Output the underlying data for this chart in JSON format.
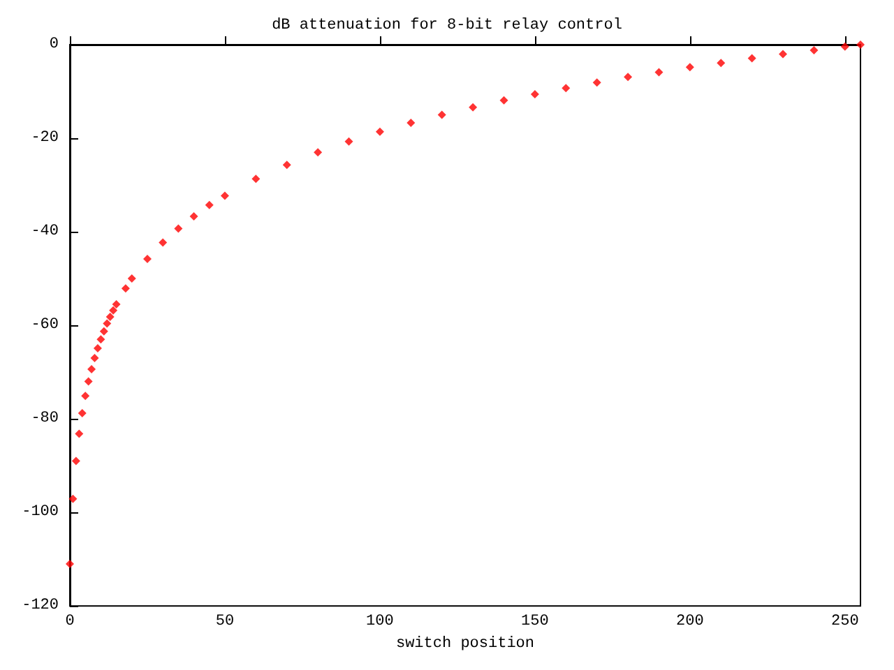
{
  "chart_data": {
    "type": "scatter",
    "title": "dB attenuation for 8-bit relay control",
    "xlabel": "switch position",
    "x": [
      0,
      1,
      2,
      3,
      4,
      5,
      6,
      7,
      8,
      9,
      10,
      11,
      12,
      13,
      14,
      15,
      18,
      20,
      25,
      30,
      35,
      40,
      45,
      50,
      60,
      70,
      80,
      90,
      100,
      110,
      120,
      130,
      140,
      150,
      160,
      170,
      180,
      190,
      200,
      210,
      220,
      230,
      240,
      250,
      255
    ],
    "series": [
      {
        "color": "#ff0000",
        "values": [
          -111,
          -97.1,
          -89.0,
          -83.2,
          -78.8,
          -75.1,
          -72.0,
          -69.4,
          -67.0,
          -64.9,
          -63.0,
          -61.3,
          -59.6,
          -58.2,
          -56.8,
          -55.5,
          -52.1,
          -50.0,
          -45.8,
          -42.3,
          -39.3,
          -36.7,
          -34.3,
          -32.3,
          -28.7,
          -25.7,
          -23.0,
          -20.7,
          -18.6,
          -16.7,
          -15.0,
          -13.4,
          -11.9,
          -10.6,
          -9.3,
          -8.1,
          -6.9,
          -5.9,
          -4.8,
          -3.9,
          -2.9,
          -2.0,
          -1.2,
          -0.4,
          0
        ]
      }
    ],
    "xlim": [
      0,
      255
    ],
    "xticks": [
      0,
      50,
      100,
      150,
      200,
      250
    ],
    "ylim": [
      -120,
      0
    ],
    "yticks": [
      -120,
      -100,
      -80,
      -60,
      -40,
      -20,
      0
    ],
    "marker": "diamond"
  }
}
